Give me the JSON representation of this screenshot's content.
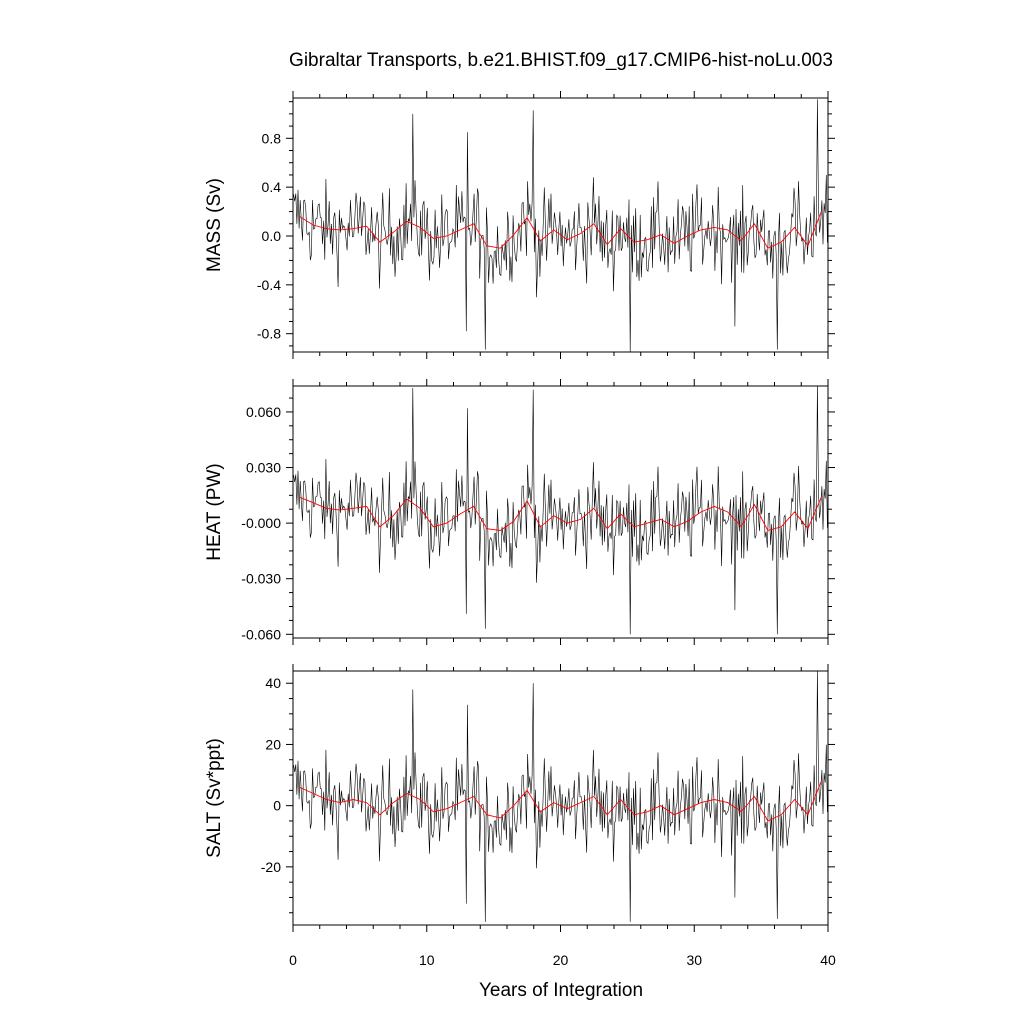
{
  "chart_data": {
    "title": "Gibraltar Transports, b.e21.BHIST.f09_g17.CMIP6-hist-noLu.003",
    "xlabel": "Years of Integration",
    "xlim": [
      0,
      40
    ],
    "xticks": [
      0,
      10,
      20,
      30,
      40
    ],
    "xticklabels": [
      "0",
      "10",
      "20",
      "30",
      "40"
    ],
    "series_colors": {
      "monthly": "#000000",
      "annual_mean": "#ff0000"
    },
    "panels": [
      {
        "type": "line",
        "ylabel": "MASS (Sv)",
        "ylim": [
          -0.95,
          1.13
        ],
        "yticks": [
          -0.8,
          -0.4,
          0.0,
          0.4,
          0.8
        ],
        "yticklabels": [
          "-0.8",
          "-0.4",
          "0.0",
          "0.4",
          "0.8"
        ],
        "annual_mean": {
          "x": [
            0.5,
            1.5,
            2.5,
            3.5,
            4.5,
            5.5,
            6.5,
            7.5,
            8.5,
            9.5,
            10.5,
            11.5,
            12.5,
            13.5,
            14.5,
            15.5,
            16.5,
            17.5,
            18.5,
            19.5,
            20.5,
            21.5,
            22.5,
            23.5,
            24.5,
            25.5,
            26.5,
            27.5,
            28.5,
            29.5,
            30.5,
            31.5,
            32.5,
            33.5,
            34.5,
            35.5,
            36.5,
            37.5,
            38.5,
            39.5
          ],
          "y": [
            0.16,
            0.09,
            0.06,
            0.05,
            0.06,
            0.08,
            -0.05,
            0.03,
            0.12,
            0.07,
            -0.02,
            0.0,
            0.05,
            0.1,
            -0.08,
            -0.1,
            0.01,
            0.15,
            -0.04,
            0.05,
            -0.03,
            0.02,
            0.1,
            -0.07,
            0.06,
            -0.05,
            -0.03,
            0.01,
            -0.06,
            0.0,
            0.05,
            0.07,
            0.05,
            -0.04,
            0.1,
            -0.1,
            -0.05,
            0.07,
            -0.08,
            0.2
          ]
        },
        "spikes": [
          [
            8.9,
            1.0
          ],
          [
            13.0,
            0.85
          ],
          [
            17.9,
            1.03
          ],
          [
            39.2,
            1.12
          ],
          [
            12.9,
            -0.78
          ],
          [
            14.3,
            -0.93
          ],
          [
            25.2,
            -0.95
          ],
          [
            33.0,
            -0.74
          ],
          [
            36.2,
            -0.93
          ]
        ]
      },
      {
        "type": "line",
        "ylabel": "HEAT (PW)",
        "ylim": [
          -0.062,
          0.074
        ],
        "yticks": [
          -0.06,
          -0.03,
          0.0,
          0.03,
          0.06
        ],
        "yticklabels": [
          "-0.060",
          "-0.030",
          "-0.000",
          "0.030",
          "0.060"
        ],
        "annual_mean": {
          "x": [
            0.5,
            1.5,
            2.5,
            3.5,
            4.5,
            5.5,
            6.5,
            7.5,
            8.5,
            9.5,
            10.5,
            11.5,
            12.5,
            13.5,
            14.5,
            15.5,
            16.5,
            17.5,
            18.5,
            19.5,
            20.5,
            21.5,
            22.5,
            23.5,
            24.5,
            25.5,
            26.5,
            27.5,
            28.5,
            29.5,
            30.5,
            31.5,
            32.5,
            33.5,
            34.5,
            35.5,
            36.5,
            37.5,
            38.5,
            39.5
          ],
          "y": [
            0.014,
            0.011,
            0.008,
            0.007,
            0.008,
            0.009,
            -0.002,
            0.004,
            0.013,
            0.008,
            -0.002,
            0.0,
            0.005,
            0.009,
            -0.003,
            -0.004,
            0.001,
            0.012,
            -0.002,
            0.004,
            0.0,
            0.002,
            0.008,
            -0.003,
            0.005,
            -0.002,
            0.0,
            0.002,
            -0.002,
            0.001,
            0.006,
            0.009,
            0.006,
            -0.002,
            0.01,
            -0.004,
            -0.002,
            0.006,
            -0.003,
            0.014
          ]
        },
        "spikes": [
          [
            8.9,
            0.073
          ],
          [
            13.0,
            0.062
          ],
          [
            17.9,
            0.072
          ],
          [
            39.2,
            0.075
          ],
          [
            12.9,
            -0.049
          ],
          [
            14.3,
            -0.057
          ],
          [
            25.2,
            -0.06
          ],
          [
            33.0,
            -0.047
          ],
          [
            36.2,
            -0.06
          ]
        ]
      },
      {
        "type": "line",
        "ylabel": "SALT (Sv*ppt)",
        "ylim": [
          -39,
          44
        ],
        "yticks": [
          -20,
          0,
          20,
          40
        ],
        "yticklabels": [
          "-20",
          "0",
          "20",
          "40"
        ],
        "annual_mean": {
          "x": [
            0.5,
            1.5,
            2.5,
            3.5,
            4.5,
            5.5,
            6.5,
            7.5,
            8.5,
            9.5,
            10.5,
            11.5,
            12.5,
            13.5,
            14.5,
            15.5,
            16.5,
            17.5,
            18.5,
            19.5,
            20.5,
            21.5,
            22.5,
            23.5,
            24.5,
            25.5,
            26.5,
            27.5,
            28.5,
            29.5,
            30.5,
            31.5,
            32.5,
            33.5,
            34.5,
            35.5,
            36.5,
            37.5,
            38.5,
            39.5
          ],
          "y": [
            6,
            4,
            2,
            1,
            2,
            1,
            -3,
            1,
            4,
            2,
            -2,
            -1,
            1,
            3,
            -3,
            -4,
            0,
            5,
            -2,
            1,
            -1,
            1,
            3,
            -3,
            2,
            -3,
            -2,
            0,
            -3,
            -1,
            1,
            2,
            1,
            -2,
            3,
            -5,
            -3,
            2,
            -3,
            8
          ]
        },
        "spikes": [
          [
            8.9,
            38
          ],
          [
            13.0,
            33
          ],
          [
            17.9,
            40
          ],
          [
            39.2,
            44
          ],
          [
            12.9,
            -32
          ],
          [
            14.3,
            -38
          ],
          [
            25.2,
            -38
          ],
          [
            33.0,
            -30
          ],
          [
            36.2,
            -37
          ]
        ]
      }
    ]
  }
}
